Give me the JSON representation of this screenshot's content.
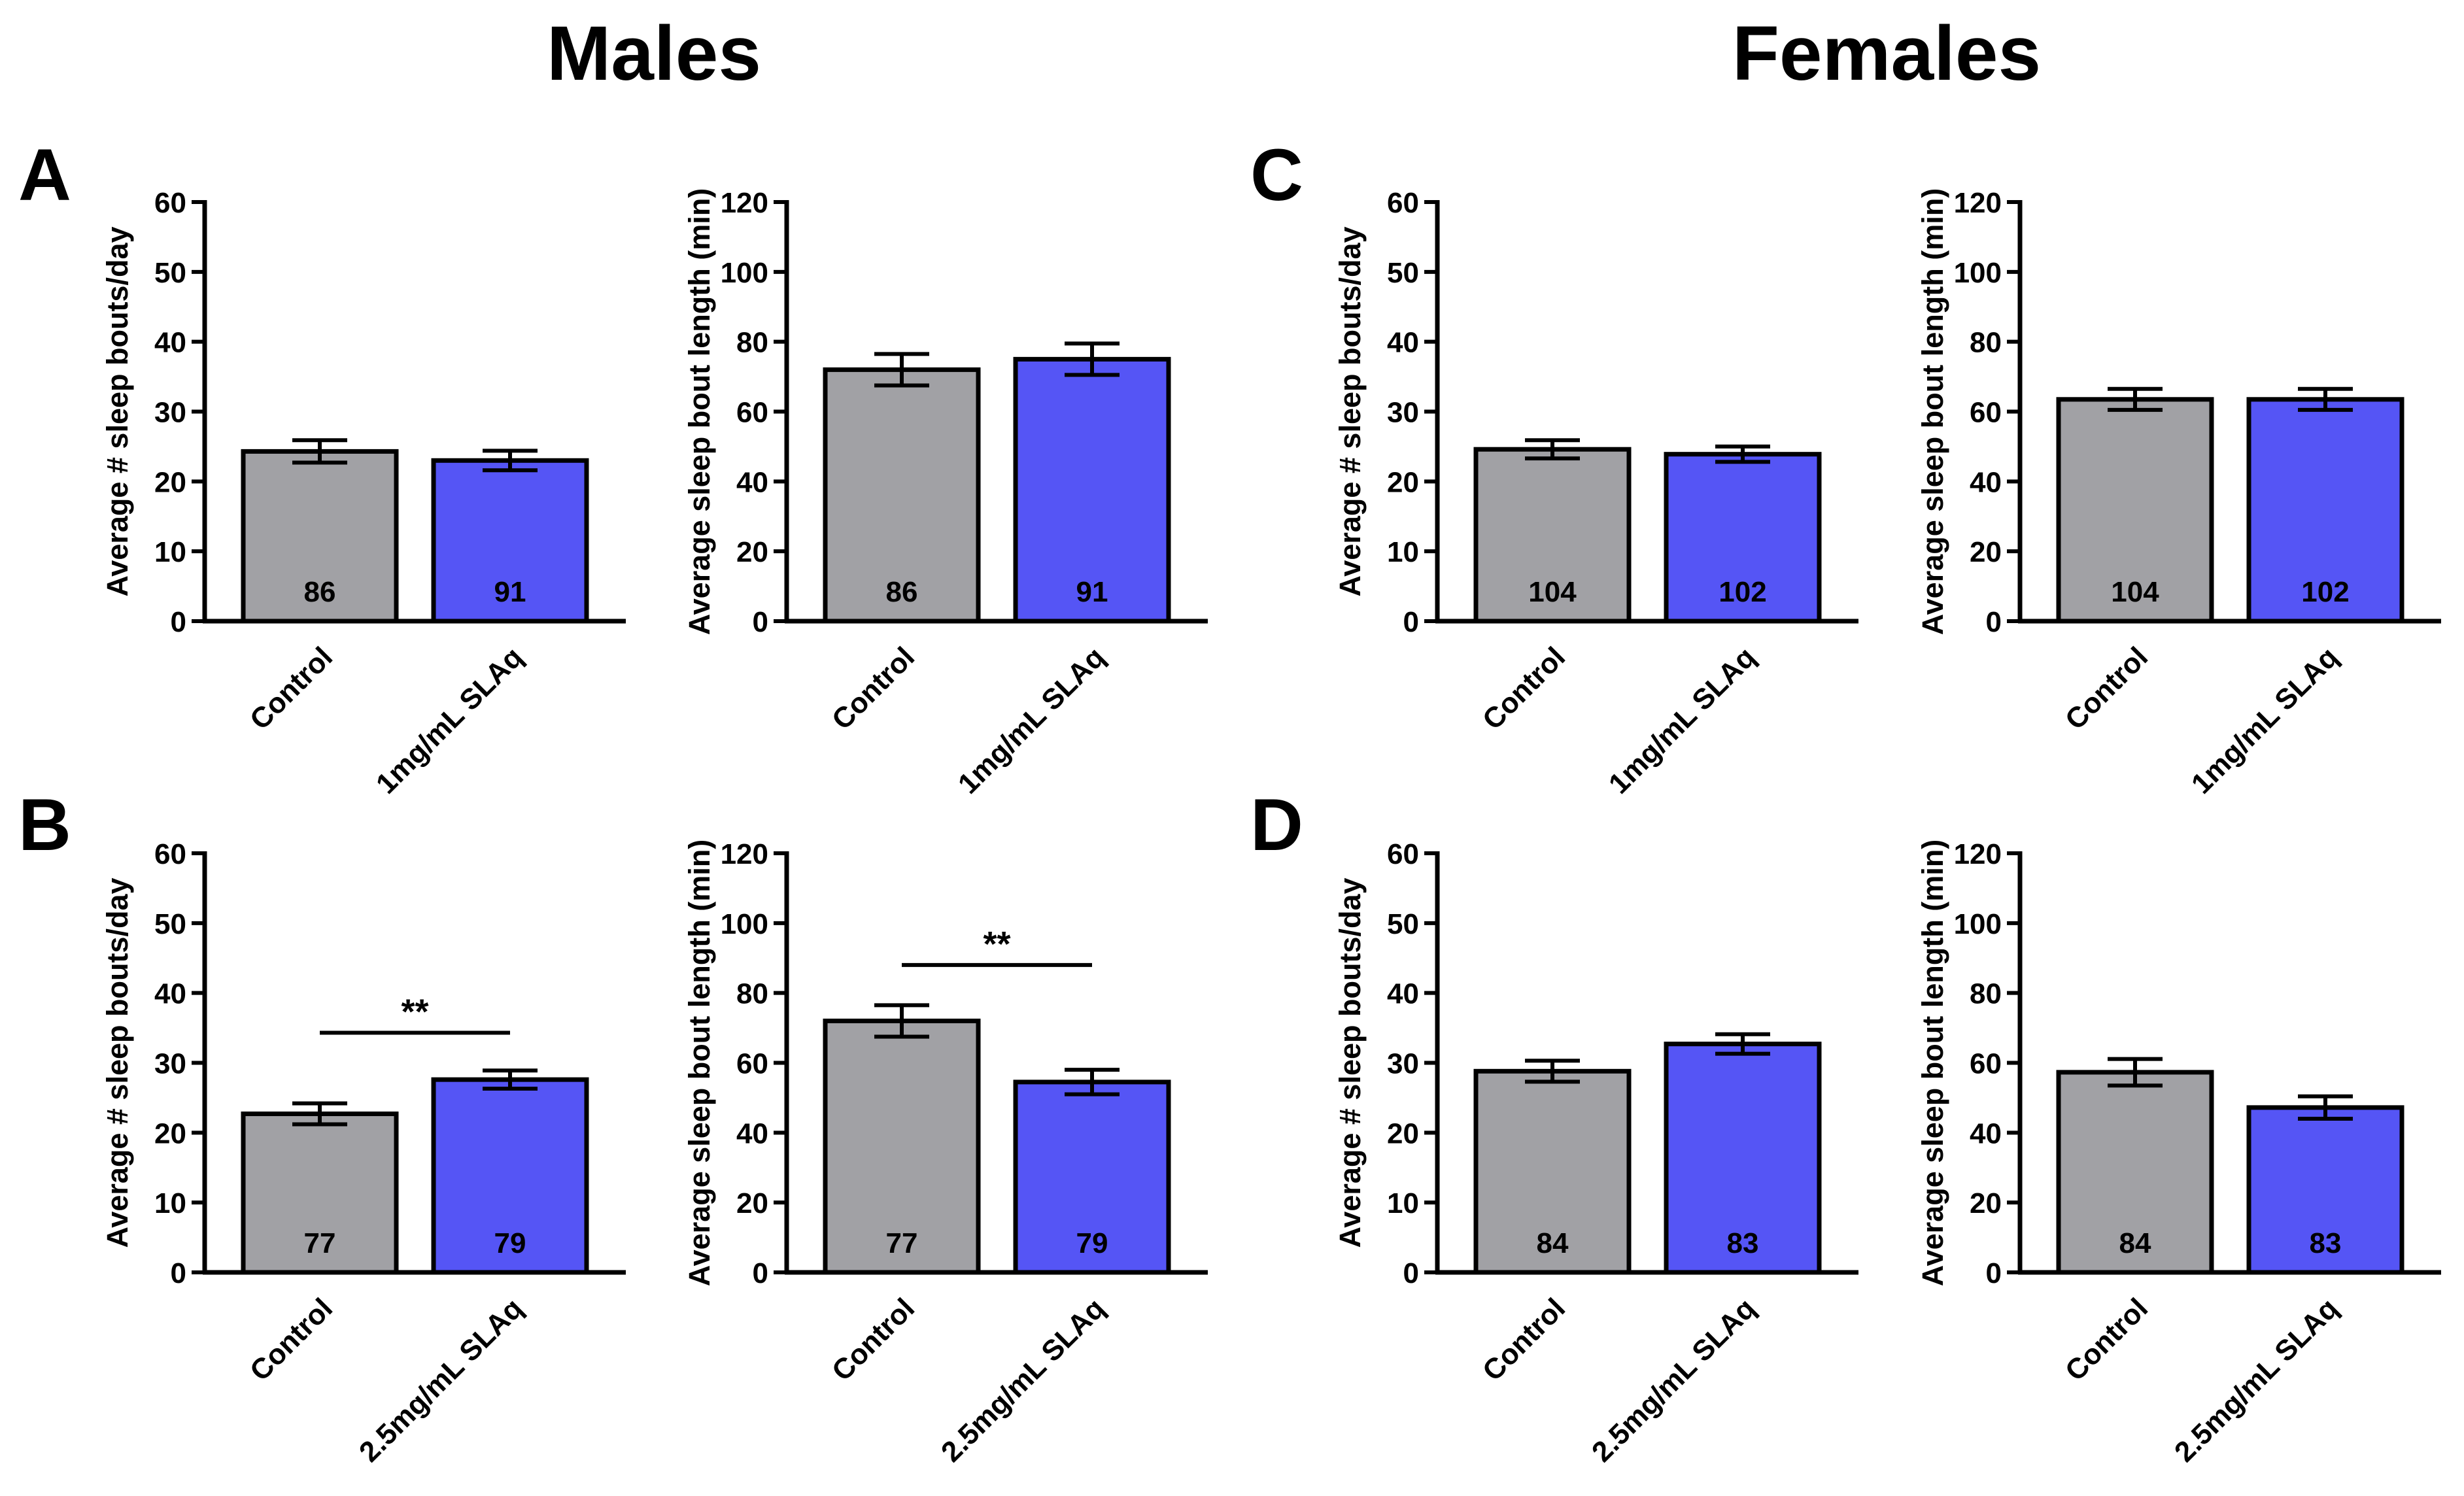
{
  "figure": {
    "sex_titles": [
      "Males",
      "Females"
    ],
    "panel_letters": [
      "A",
      "B",
      "C",
      "D"
    ],
    "colors": {
      "control": "#a1a1a5",
      "treatment": "#5555f5",
      "axis": "#000000"
    }
  },
  "chart_data": [
    {
      "id": "A-bouts",
      "panel": "A",
      "sex": "Males",
      "type": "bar",
      "ylabel": "Average # sleep bouts/day",
      "ylim": [
        0,
        60
      ],
      "yticks": [
        0,
        10,
        20,
        30,
        40,
        50,
        60
      ],
      "categories": [
        "Control",
        "1mg/mL SLAq"
      ],
      "values": [
        24.3,
        23.0
      ],
      "errors": [
        1.6,
        1.4
      ],
      "n_labels": [
        "86",
        "91"
      ],
      "significance": null
    },
    {
      "id": "A-length",
      "panel": "A",
      "sex": "Males",
      "type": "bar",
      "ylabel": "Average sleep bout length (min)",
      "ylim": [
        0,
        120
      ],
      "yticks": [
        0,
        20,
        40,
        60,
        80,
        100,
        120
      ],
      "categories": [
        "Control",
        "1mg/mL SLAq"
      ],
      "values": [
        72,
        75
      ],
      "errors": [
        4.5,
        4.5
      ],
      "n_labels": [
        "86",
        "91"
      ],
      "significance": null
    },
    {
      "id": "B-bouts",
      "panel": "B",
      "sex": "Males",
      "type": "bar",
      "ylabel": "Average # sleep bouts/day",
      "ylim": [
        0,
        60
      ],
      "yticks": [
        0,
        10,
        20,
        30,
        40,
        50,
        60
      ],
      "categories": [
        "Control",
        "2.5mg/mL SLAq"
      ],
      "values": [
        22.7,
        27.6
      ],
      "errors": [
        1.5,
        1.3
      ],
      "n_labels": [
        "77",
        "79"
      ],
      "significance": {
        "label": "**",
        "y": 34.3
      }
    },
    {
      "id": "B-length",
      "panel": "B",
      "sex": "Males",
      "type": "bar",
      "ylabel": "Average sleep bout length (min)",
      "ylim": [
        0,
        120
      ],
      "yticks": [
        0,
        20,
        40,
        60,
        80,
        100,
        120
      ],
      "categories": [
        "Control",
        "2.5mg/mL SLAq"
      ],
      "values": [
        72,
        54.5
      ],
      "errors": [
        4.5,
        3.5
      ],
      "n_labels": [
        "77",
        "79"
      ],
      "significance": {
        "label": "**",
        "y": 88
      }
    },
    {
      "id": "C-bouts",
      "panel": "C",
      "sex": "Females",
      "type": "bar",
      "ylabel": "Average # sleep bouts/day",
      "ylim": [
        0,
        60
      ],
      "yticks": [
        0,
        10,
        20,
        30,
        40,
        50,
        60
      ],
      "categories": [
        "Control",
        "1mg/mL SLAq"
      ],
      "values": [
        24.6,
        23.9
      ],
      "errors": [
        1.3,
        1.1
      ],
      "n_labels": [
        "104",
        "102"
      ],
      "significance": null
    },
    {
      "id": "C-length",
      "panel": "C",
      "sex": "Females",
      "type": "bar",
      "ylabel": "Average sleep bout length (min)",
      "ylim": [
        0,
        120
      ],
      "yticks": [
        0,
        20,
        40,
        60,
        80,
        100,
        120
      ],
      "categories": [
        "Control",
        "1mg/mL SLAq"
      ],
      "values": [
        63.5,
        63.5
      ],
      "errors": [
        3.0,
        3.0
      ],
      "n_labels": [
        "104",
        "102"
      ],
      "significance": null
    },
    {
      "id": "D-bouts",
      "panel": "D",
      "sex": "Females",
      "type": "bar",
      "ylabel": "Average # sleep bouts/day",
      "ylim": [
        0,
        60
      ],
      "yticks": [
        0,
        10,
        20,
        30,
        40,
        50,
        60
      ],
      "categories": [
        "Control",
        "2.5mg/mL SLAq"
      ],
      "values": [
        28.8,
        32.7
      ],
      "errors": [
        1.5,
        1.4
      ],
      "n_labels": [
        "84",
        "83"
      ],
      "significance": null
    },
    {
      "id": "D-length",
      "panel": "D",
      "sex": "Females",
      "type": "bar",
      "ylabel": "Average sleep bout length (min)",
      "ylim": [
        0,
        120
      ],
      "yticks": [
        0,
        20,
        40,
        60,
        80,
        100,
        120
      ],
      "categories": [
        "Control",
        "2.5mg/mL SLAq"
      ],
      "values": [
        57.3,
        47.2
      ],
      "errors": [
        3.8,
        3.2
      ],
      "n_labels": [
        "84",
        "83"
      ],
      "significance": null
    }
  ]
}
